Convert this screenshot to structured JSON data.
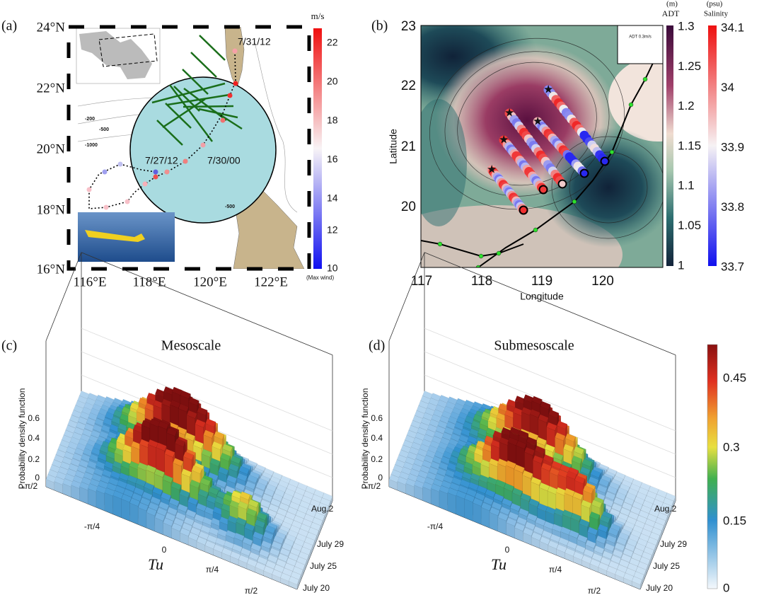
{
  "panels": [
    {
      "label": "(a)",
      "lat_ticks": [
        "24°N",
        "22°N",
        "20°N",
        "18°N",
        "16°N"
      ],
      "lon_ticks": [
        "116°E",
        "118°E",
        "120°E",
        "122°E"
      ],
      "colorbar": {
        "unit": "m/s",
        "ticks": [
          "22",
          "20",
          "18",
          "16",
          "14",
          "12",
          "10"
        ],
        "note": "(Max wind)"
      },
      "annotations": [
        "7/31/12",
        "7/27/12",
        "7/30/00"
      ],
      "contour_labels": [
        "-200",
        "-500",
        "-1000",
        "-500"
      ]
    },
    {
      "label": "(b)",
      "x_label": "Longitude",
      "y_label": "Latitude",
      "lat_ticks": [
        "23",
        "22",
        "21",
        "20"
      ],
      "lon_ticks": [
        "117",
        "118",
        "119",
        "120"
      ],
      "vector_label": "ADT 0.3m/s",
      "adt_colorbar": {
        "unit": "(m)",
        "name": "ADT",
        "ticks": [
          "1.3",
          "1.25",
          "1.2",
          "1.15",
          "1.1",
          "1.05",
          "1"
        ]
      },
      "salinity_colorbar": {
        "unit": "(psu)",
        "name": "Salinity",
        "ticks": [
          "34.1",
          "34",
          "33.9",
          "33.8",
          "33.7"
        ]
      }
    },
    {
      "label": "(c)",
      "title": "Mesoscale",
      "z_label": "Probability density function",
      "z_ticks": [
        "0",
        "0.2",
        "0.4",
        "0.6"
      ],
      "tu_ticks": [
        "-π/2",
        "-π/4",
        "0",
        "π/4",
        "π/2"
      ],
      "tu_label": "Tu",
      "date_ticks": [
        "Aug.2",
        "July 29",
        "July 25",
        "July 20"
      ]
    },
    {
      "label": "(d)",
      "title": "Submesoscale",
      "z_label": "Probability density function",
      "z_ticks": [
        "0",
        "0.2",
        "0.4",
        "0.6"
      ],
      "tu_ticks": [
        "-π/2",
        "-π/4",
        "0",
        "π/4",
        "π/2"
      ],
      "tu_label": "Tu",
      "date_ticks": [
        "Aug.2",
        "July 29",
        "July 25",
        "July 20"
      ]
    }
  ],
  "colorbar": {
    "ticks": [
      "0.45",
      "0.3",
      "0.15",
      "0"
    ]
  }
}
